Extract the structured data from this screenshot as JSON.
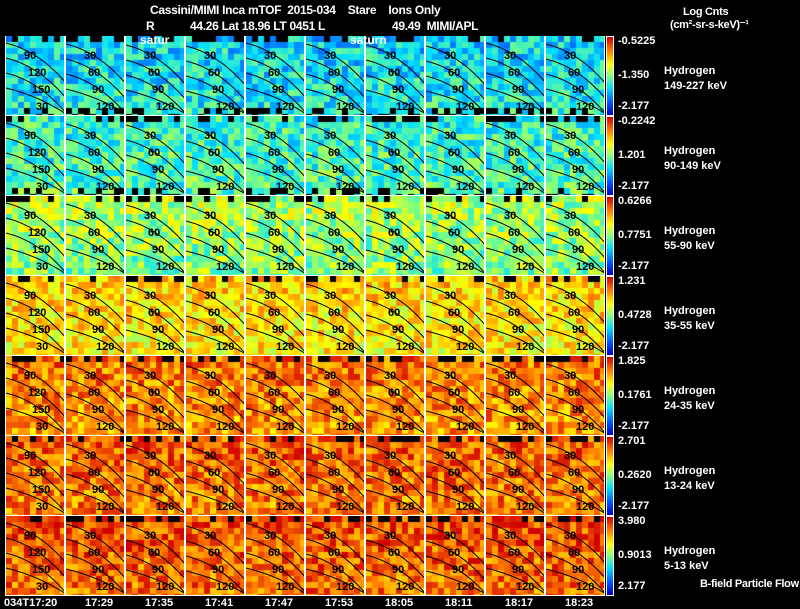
{
  "header": {
    "line1": "Cassini/MIMI Inca mTOF  2015-034    Stare    Ions Only",
    "r_label": "R",
    "line2": "44.26 Lat 18.96 LT 0451 L",
    "line2b": "49.49  MIMI/APL",
    "saturn_labels": [
      "satur",
      "saturn"
    ]
  },
  "units": {
    "title": "Log Cnts",
    "unit": "(cm²-sr-s-keV)⁻¹"
  },
  "footer": {
    "legend": "B-field Particle Flow"
  },
  "chart_data": {
    "type": "heatmap",
    "title": "Cassini/MIMI Inca mTOF 2015-034 Stare Ions Only",
    "times": [
      "034T17:20",
      "17:29",
      "17:35",
      "17:41",
      "17:47",
      "17:53",
      "18:05",
      "18:11",
      "18:17",
      "18:23"
    ],
    "contour_labels": [
      "30",
      "60",
      "90",
      "120",
      "150"
    ],
    "channels": [
      {
        "species": "Hydrogen",
        "energy": "149-227 keV",
        "max": "-0.5225",
        "mid": "-1.350",
        "min": "-2.177",
        "level": 0.33
      },
      {
        "species": "Hydrogen",
        "energy": "90-149 keV",
        "max": "-0.2242",
        "mid": "1.201",
        "min": "-2.177",
        "level": 0.4
      },
      {
        "species": "Hydrogen",
        "energy": "55-90 keV",
        "max": "0.6266",
        "mid": "0.7751",
        "min": "-2.177",
        "level": 0.56
      },
      {
        "species": "Hydrogen",
        "energy": "35-55 keV",
        "max": "1.231",
        "mid": "0.4728",
        "min": "-2.177",
        "level": 0.72
      },
      {
        "species": "Hydrogen",
        "energy": "24-35 keV",
        "max": "1.825",
        "mid": "0.1761",
        "min": "-2.177",
        "level": 0.84
      },
      {
        "species": "Hydrogen",
        "energy": "13-24 keV",
        "max": "2.701",
        "mid": "0.2620",
        "min": "-2.177",
        "level": 0.87
      },
      {
        "species": "Hydrogen",
        "energy": "5-13 keV",
        "max": "3.980",
        "mid": "0.9013",
        "min": "2.177",
        "level": 0.89
      }
    ]
  }
}
